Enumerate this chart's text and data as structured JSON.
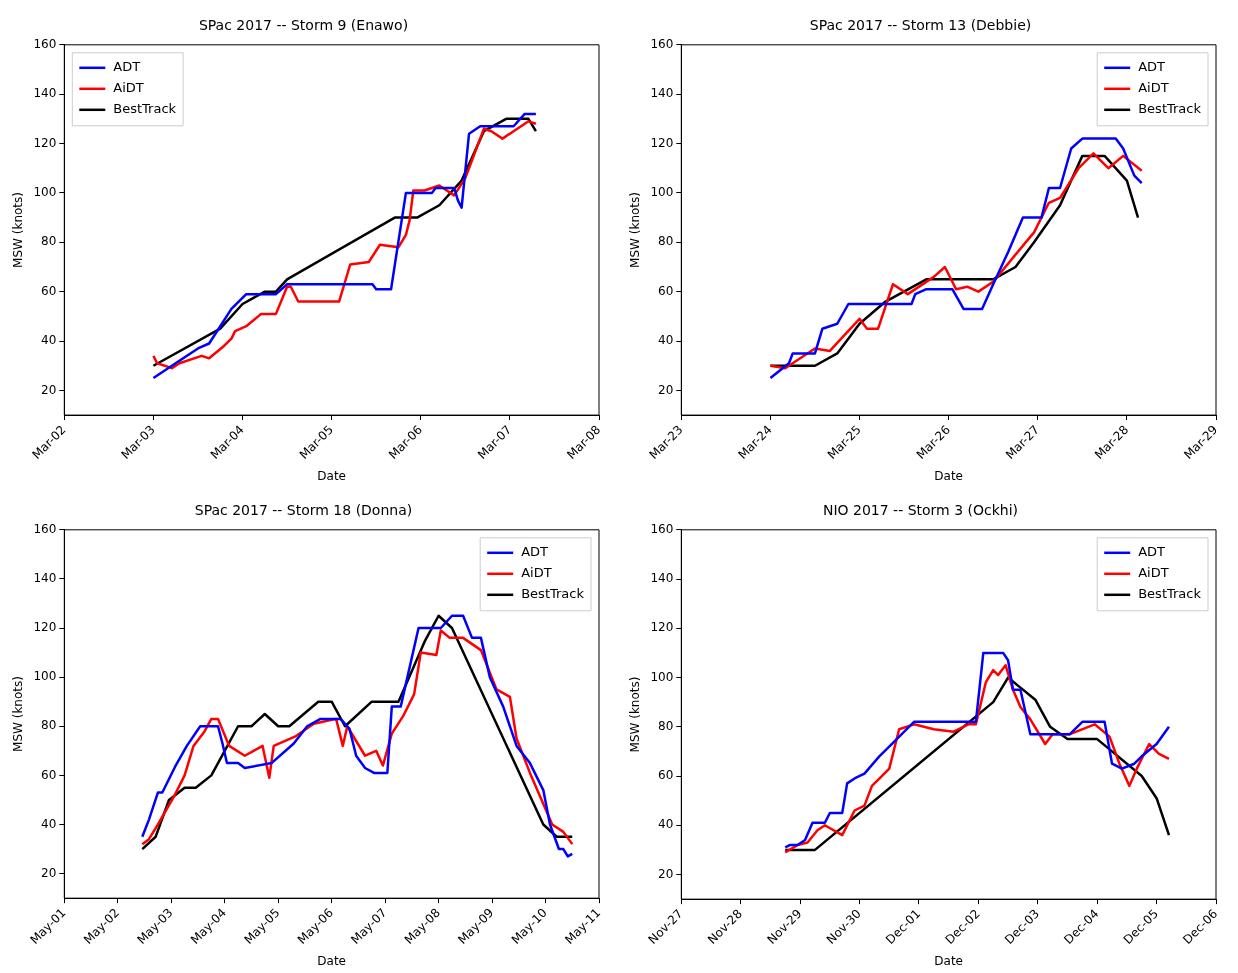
{
  "chart_data": [
    {
      "type": "line",
      "title": "SPac 2017 -- Storm 9 (Enawo)",
      "xlabel": "Date",
      "ylabel": "MSW (knots)",
      "legend": "top left",
      "grid": false,
      "xlim": [
        "2017-03-02",
        "2017-03-08"
      ],
      "xticks": [
        {
          "value": "2017-03-02",
          "label": "Mar-02"
        },
        {
          "value": "2017-03-03",
          "label": "Mar-03"
        },
        {
          "value": "2017-03-04",
          "label": "Mar-04"
        },
        {
          "value": "2017-03-05",
          "label": "Mar-05"
        },
        {
          "value": "2017-03-06",
          "label": "Mar-06"
        },
        {
          "value": "2017-03-07",
          "label": "Mar-07"
        },
        {
          "value": "2017-03-08",
          "label": "Mar-08"
        }
      ],
      "ylim": [
        10,
        160
      ],
      "yticks": [
        20,
        40,
        60,
        80,
        100,
        120,
        140,
        160
      ],
      "series": [
        {
          "name": "ADT",
          "color": "#0000ff",
          "x": [
            "2017-03-03T00:00",
            "2017-03-03T07:00",
            "2017-03-03T12:00",
            "2017-03-03T15:00",
            "2017-03-03T18:00",
            "2017-03-03T21:00",
            "2017-03-04T01:00",
            "2017-03-04T09:00",
            "2017-03-04T12:00",
            "2017-03-05T11:00",
            "2017-03-05T12:00",
            "2017-03-05T16:00",
            "2017-03-05T20:00",
            "2017-03-06T03:00",
            "2017-03-06T04:00",
            "2017-03-06T09:00",
            "2017-03-06T10:00",
            "2017-03-06T11:00",
            "2017-03-06T13:00",
            "2017-03-06T16:00",
            "2017-03-07T01:00",
            "2017-03-07T04:00",
            "2017-03-07T07:00"
          ],
          "values": [
            25,
            32,
            37,
            39,
            46,
            53,
            59,
            59,
            63,
            63,
            61,
            61,
            100,
            100,
            102,
            102,
            97,
            94,
            124,
            127,
            127,
            132,
            132
          ]
        },
        {
          "name": "AiDT",
          "color": "#ff0000",
          "x": [
            "2017-03-03T00:00",
            "2017-03-03T01:00",
            "2017-03-03T05:00",
            "2017-03-03T07:00",
            "2017-03-03T13:00",
            "2017-03-03T15:00",
            "2017-03-03T19:00",
            "2017-03-03T21:00",
            "2017-03-03T22:00",
            "2017-03-04T01:00",
            "2017-03-04T05:00",
            "2017-03-04T09:00",
            "2017-03-04T12:00",
            "2017-03-04T13:00",
            "2017-03-04T15:00",
            "2017-03-04T21:00",
            "2017-03-05T02:00",
            "2017-03-05T05:00",
            "2017-03-05T10:00",
            "2017-03-05T13:00",
            "2017-03-05T18:00",
            "2017-03-05T20:00",
            "2017-03-05T21:00",
            "2017-03-05T22:00",
            "2017-03-06T01:00",
            "2017-03-06T05:00",
            "2017-03-06T09:00",
            "2017-03-06T12:00",
            "2017-03-06T17:00",
            "2017-03-06T19:00",
            "2017-03-06T22:00",
            "2017-03-07T01:00",
            "2017-03-07T05:00",
            "2017-03-07T07:00"
          ],
          "values": [
            34,
            31,
            29,
            31,
            34,
            33,
            38,
            41,
            44,
            46,
            51,
            51,
            62,
            62,
            56,
            56,
            56,
            71,
            72,
            79,
            78,
            83,
            89,
            101,
            101,
            103,
            99,
            106,
            126,
            125,
            122,
            125,
            129,
            128
          ]
        },
        {
          "name": "BestTrack",
          "color": "#000000",
          "x": [
            "2017-03-03T00:00",
            "2017-03-03T18:00",
            "2017-03-04T00:00",
            "2017-03-04T06:00",
            "2017-03-04T09:00",
            "2017-03-04T12:00",
            "2017-03-05T17:00",
            "2017-03-05T23:00",
            "2017-03-06T05:00",
            "2017-03-06T11:00",
            "2017-03-06T17:00",
            "2017-03-06T23:00",
            "2017-03-07T05:00",
            "2017-03-07T07:00"
          ],
          "values": [
            30,
            45,
            55,
            60,
            60,
            65,
            90,
            90,
            95,
            105,
            125,
            130,
            130,
            125
          ]
        }
      ]
    },
    {
      "type": "line",
      "title": "SPac 2017 -- Storm 13 (Debbie)",
      "xlabel": "Date",
      "ylabel": "MSW (knots)",
      "legend": "top right",
      "grid": false,
      "xlim": [
        "2017-03-23",
        "2017-03-29"
      ],
      "xticks": [
        {
          "value": "2017-03-23",
          "label": "Mar-23"
        },
        {
          "value": "2017-03-24",
          "label": "Mar-24"
        },
        {
          "value": "2017-03-25",
          "label": "Mar-25"
        },
        {
          "value": "2017-03-26",
          "label": "Mar-26"
        },
        {
          "value": "2017-03-27",
          "label": "Mar-27"
        },
        {
          "value": "2017-03-28",
          "label": "Mar-28"
        },
        {
          "value": "2017-03-29",
          "label": "Mar-29"
        }
      ],
      "ylim": [
        10,
        160
      ],
      "yticks": [
        20,
        40,
        60,
        80,
        100,
        120,
        140,
        160
      ],
      "series": [
        {
          "name": "ADT",
          "color": "#0000ff",
          "x": [
            "2017-03-24T00:00",
            "2017-03-24T05:00",
            "2017-03-24T06:00",
            "2017-03-24T12:00",
            "2017-03-24T14:00",
            "2017-03-24T18:00",
            "2017-03-24T21:00",
            "2017-03-25T14:00",
            "2017-03-25T15:00",
            "2017-03-25T18:00",
            "2017-03-26T01:00",
            "2017-03-26T04:00",
            "2017-03-26T09:00",
            "2017-03-26T12:00",
            "2017-03-26T16:00",
            "2017-03-26T20:00",
            "2017-03-27T01:00",
            "2017-03-27T03:00",
            "2017-03-27T06:00",
            "2017-03-27T09:00",
            "2017-03-27T12:00",
            "2017-03-27T21:00",
            "2017-03-27T23:00",
            "2017-03-28T02:00",
            "2017-03-28T04:00"
          ],
          "values": [
            25,
            31,
            35,
            35,
            45,
            47,
            55,
            55,
            59,
            61,
            61,
            53,
            53,
            63,
            76,
            90,
            90,
            102,
            102,
            118,
            122,
            122,
            118,
            107,
            104
          ]
        },
        {
          "name": "AiDT",
          "color": "#ff0000",
          "x": [
            "2017-03-24T00:00",
            "2017-03-24T04:00",
            "2017-03-24T07:00",
            "2017-03-24T12:00",
            "2017-03-24T16:00",
            "2017-03-25T00:00",
            "2017-03-25T02:00",
            "2017-03-25T05:00",
            "2017-03-25T09:00",
            "2017-03-25T13:00",
            "2017-03-25T20:00",
            "2017-03-25T23:00",
            "2017-03-26T02:00",
            "2017-03-26T05:00",
            "2017-03-26T08:00",
            "2017-03-26T12:00",
            "2017-03-26T18:00",
            "2017-03-26T23:00",
            "2017-03-27T03:00",
            "2017-03-27T06:00",
            "2017-03-27T11:00",
            "2017-03-27T15:00",
            "2017-03-27T19:00",
            "2017-03-27T23:00",
            "2017-03-28T04:00"
          ],
          "values": [
            30,
            29,
            32,
            37,
            36,
            49,
            45,
            45,
            63,
            59,
            66,
            70,
            61,
            62,
            60,
            64,
            75,
            84,
            96,
            98,
            110,
            116,
            110,
            115,
            109
          ]
        },
        {
          "name": "BestTrack",
          "color": "#000000",
          "x": [
            "2017-03-24T00:00",
            "2017-03-24T12:00",
            "2017-03-24T18:00",
            "2017-03-25T00:00",
            "2017-03-25T07:00",
            "2017-03-25T18:00",
            "2017-03-26T12:00",
            "2017-03-26T18:00",
            "2017-03-26T23:00",
            "2017-03-27T06:00",
            "2017-03-27T12:00",
            "2017-03-27T18:00",
            "2017-03-28T00:00",
            "2017-03-28T03:00"
          ],
          "values": [
            30,
            30,
            35,
            47,
            56,
            65,
            65,
            70,
            80,
            95,
            115,
            115,
            105,
            90
          ]
        }
      ]
    },
    {
      "type": "line",
      "title": "SPac 2017 -- Storm 18 (Donna)",
      "xlabel": "Date",
      "ylabel": "MSW (knots)",
      "legend": "top right",
      "grid": false,
      "xlim": [
        "2017-05-01",
        "2017-05-11"
      ],
      "xticks": [
        {
          "value": "2017-05-01",
          "label": "May-01"
        },
        {
          "value": "2017-05-02",
          "label": "May-02"
        },
        {
          "value": "2017-05-03",
          "label": "May-03"
        },
        {
          "value": "2017-05-04",
          "label": "May-04"
        },
        {
          "value": "2017-05-05",
          "label": "May-05"
        },
        {
          "value": "2017-05-06",
          "label": "May-06"
        },
        {
          "value": "2017-05-07",
          "label": "May-07"
        },
        {
          "value": "2017-05-08",
          "label": "May-08"
        },
        {
          "value": "2017-05-09",
          "label": "May-09"
        },
        {
          "value": "2017-05-10",
          "label": "May-10"
        },
        {
          "value": "2017-05-11",
          "label": "May-11"
        }
      ],
      "ylim": [
        10,
        160
      ],
      "yticks": [
        20,
        40,
        60,
        80,
        100,
        120,
        140,
        160
      ],
      "series": [
        {
          "name": "ADT",
          "color": "#0000ff",
          "x": [
            "2017-05-02T11:00",
            "2017-05-02T14:00",
            "2017-05-02T18:00",
            "2017-05-02T20:00",
            "2017-05-03T02:00",
            "2017-05-03T07:00",
            "2017-05-03T13:00",
            "2017-05-03T21:00",
            "2017-05-03T23:00",
            "2017-05-04T01:00",
            "2017-05-04T06:00",
            "2017-05-04T09:00",
            "2017-05-04T21:00",
            "2017-05-05T07:00",
            "2017-05-05T13:00",
            "2017-05-05T19:00",
            "2017-05-06T04:00",
            "2017-05-06T08:00",
            "2017-05-06T11:00",
            "2017-05-06T15:00",
            "2017-05-06T19:00",
            "2017-05-07T01:00",
            "2017-05-07T03:00",
            "2017-05-07T07:00",
            "2017-05-07T10:00",
            "2017-05-07T15:00",
            "2017-05-08T01:00",
            "2017-05-08T06:00",
            "2017-05-08T11:00",
            "2017-05-08T15:00",
            "2017-05-08T19:00",
            "2017-05-08T23:00",
            "2017-05-09T05:00",
            "2017-05-09T11:00",
            "2017-05-09T17:00",
            "2017-05-09T23:00",
            "2017-05-10T02:00",
            "2017-05-10T06:00",
            "2017-05-10T08:00",
            "2017-05-10T10:00",
            "2017-05-10T12:00"
          ],
          "values": [
            35,
            42,
            53,
            53,
            64,
            72,
            80,
            80,
            73,
            65,
            65,
            63,
            65,
            73,
            80,
            83,
            83,
            79,
            68,
            63,
            61,
            61,
            88,
            88,
            100,
            120,
            120,
            125,
            125,
            116,
            116,
            100,
            88,
            72,
            65,
            54,
            40,
            30,
            30,
            27,
            28
          ]
        },
        {
          "name": "AiDT",
          "color": "#ff0000",
          "x": [
            "2017-05-02T11:00",
            "2017-05-02T14:00",
            "2017-05-02T18:00",
            "2017-05-03T01:00",
            "2017-05-03T06:00",
            "2017-05-03T10:00",
            "2017-05-03T15:00",
            "2017-05-03T18:00",
            "2017-05-03T21:00",
            "2017-05-04T02:00",
            "2017-05-04T09:00",
            "2017-05-04T15:00",
            "2017-05-04T17:00",
            "2017-05-04T20:00",
            "2017-05-04T22:00",
            "2017-05-05T08:00",
            "2017-05-05T16:00",
            "2017-05-06T02:00",
            "2017-05-06T05:00",
            "2017-05-06T07:00",
            "2017-05-06T15:00",
            "2017-05-06T20:00",
            "2017-05-06T23:00",
            "2017-05-07T03:00",
            "2017-05-07T08:00",
            "2017-05-07T13:00",
            "2017-05-07T16:00",
            "2017-05-07T23:00",
            "2017-05-08T01:00",
            "2017-05-08T05:00",
            "2017-05-08T11:00",
            "2017-05-08T19:00",
            "2017-05-09T02:00",
            "2017-05-09T08:00",
            "2017-05-09T11:00",
            "2017-05-09T17:00",
            "2017-05-10T03:00",
            "2017-05-10T08:00",
            "2017-05-10T12:00"
          ],
          "values": [
            32,
            34,
            40,
            51,
            60,
            72,
            78,
            83,
            83,
            72,
            68,
            71,
            72,
            59,
            72,
            76,
            81,
            83,
            72,
            80,
            68,
            70,
            64,
            77,
            84,
            93,
            110,
            109,
            119,
            116,
            116,
            111,
            95,
            92,
            75,
            61,
            40,
            37,
            32
          ]
        },
        {
          "name": "BestTrack",
          "color": "#000000",
          "x": [
            "2017-05-02T11:00",
            "2017-05-02T17:00",
            "2017-05-02T23:00",
            "2017-05-03T06:00",
            "2017-05-03T11:00",
            "2017-05-03T18:00",
            "2017-05-04T06:00",
            "2017-05-04T12:00",
            "2017-05-04T18:00",
            "2017-05-05T00:00",
            "2017-05-05T05:00",
            "2017-05-05T18:00",
            "2017-05-06T00:00",
            "2017-05-06T06:00",
            "2017-05-06T18:00",
            "2017-05-07T06:00",
            "2017-05-07T18:00",
            "2017-05-08T00:00",
            "2017-05-08T06:00",
            "2017-05-09T23:00",
            "2017-05-10T05:00",
            "2017-05-10T12:00"
          ],
          "values": [
            30,
            35,
            50,
            55,
            55,
            60,
            80,
            80,
            85,
            80,
            80,
            90,
            90,
            80,
            90,
            90,
            115,
            125,
            120,
            40,
            35,
            35
          ]
        }
      ]
    },
    {
      "type": "line",
      "title": "NIO 2017 -- Storm 3 (Ockhi)",
      "xlabel": "Date",
      "ylabel": "MSW (knots)",
      "legend": "top right",
      "grid": false,
      "xlim": [
        "2017-11-27",
        "2017-12-06"
      ],
      "xticks": [
        {
          "value": "2017-11-27",
          "label": "Nov-27"
        },
        {
          "value": "2017-11-28",
          "label": "Nov-28"
        },
        {
          "value": "2017-11-29",
          "label": "Nov-29"
        },
        {
          "value": "2017-11-30",
          "label": "Nov-30"
        },
        {
          "value": "2017-12-01",
          "label": "Dec-01"
        },
        {
          "value": "2017-12-02",
          "label": "Dec-02"
        },
        {
          "value": "2017-12-03",
          "label": "Dec-03"
        },
        {
          "value": "2017-12-04",
          "label": "Dec-04"
        },
        {
          "value": "2017-12-05",
          "label": "Dec-05"
        },
        {
          "value": "2017-12-06",
          "label": "Dec-06"
        }
      ],
      "ylim": [
        10,
        160
      ],
      "yticks": [
        20,
        40,
        60,
        80,
        100,
        120,
        140,
        160
      ],
      "series": [
        {
          "name": "ADT",
          "color": "#0000ff",
          "x": [
            "2017-11-28T18:00",
            "2017-11-28T20:00",
            "2017-11-28T23:00",
            "2017-11-29T02:00",
            "2017-11-29T05:00",
            "2017-11-29T10:00",
            "2017-11-29T12:00",
            "2017-11-29T17:00",
            "2017-11-29T19:00",
            "2017-11-29T22:00",
            "2017-11-30T02:00",
            "2017-11-30T08:00",
            "2017-11-30T13:00",
            "2017-11-30T22:00",
            "2017-12-01T23:00",
            "2017-12-02T02:00",
            "2017-12-02T10:00",
            "2017-12-02T12:00",
            "2017-12-02T14:00",
            "2017-12-02T17:00",
            "2017-12-02T21:00",
            "2017-12-03T13:00",
            "2017-12-03T18:00",
            "2017-12-04T03:00",
            "2017-12-04T06:00",
            "2017-12-04T10:00",
            "2017-12-04T15:00",
            "2017-12-04T18:00",
            "2017-12-05T00:00",
            "2017-12-05T05:00"
          ],
          "values": [
            31,
            32,
            32,
            34,
            41,
            41,
            45,
            45,
            57,
            59,
            61,
            68,
            73,
            82,
            82,
            110,
            110,
            107,
            95,
            95,
            77,
            77,
            82,
            82,
            65,
            63,
            65,
            68,
            73,
            80
          ]
        },
        {
          "name": "AiDT",
          "color": "#ff0000",
          "x": [
            "2017-11-28T18:00",
            "2017-11-28T23:00",
            "2017-11-29T03:00",
            "2017-11-29T07:00",
            "2017-11-29T10:00",
            "2017-11-29T17:00",
            "2017-11-29T22:00",
            "2017-11-30T02:00",
            "2017-11-30T05:00",
            "2017-11-30T09:00",
            "2017-11-30T12:00",
            "2017-11-30T16:00",
            "2017-11-30T22:00",
            "2017-12-01T06:00",
            "2017-12-01T14:00",
            "2017-12-01T20:00",
            "2017-12-01T23:00",
            "2017-12-02T03:00",
            "2017-12-02T06:00",
            "2017-12-02T08:00",
            "2017-12-02T11:00",
            "2017-12-02T14:00",
            "2017-12-02T17:00",
            "2017-12-02T21:00",
            "2017-12-03T03:00",
            "2017-12-03T06:00",
            "2017-12-03T13:00",
            "2017-12-03T23:00",
            "2017-12-04T05:00",
            "2017-12-04T09:00",
            "2017-12-04T13:00",
            "2017-12-04T16:00",
            "2017-12-04T21:00",
            "2017-12-05T01:00",
            "2017-12-05T05:00"
          ],
          "values": [
            29,
            32,
            33,
            38,
            40,
            36,
            46,
            48,
            56,
            60,
            63,
            79,
            81,
            79,
            78,
            81,
            81,
            98,
            103,
            101,
            105,
            95,
            88,
            83,
            73,
            77,
            77,
            81,
            76,
            65,
            56,
            63,
            73,
            69,
            67
          ]
        },
        {
          "name": "BestTrack",
          "color": "#000000",
          "x": [
            "2017-11-28T18:00",
            "2017-11-29T06:00",
            "2017-12-02T06:00",
            "2017-12-02T12:00",
            "2017-12-02T23:00",
            "2017-12-03T05:00",
            "2017-12-03T12:00",
            "2017-12-04T00:00",
            "2017-12-04T06:00",
            "2017-12-04T18:00",
            "2017-12-05T00:00",
            "2017-12-05T05:00"
          ],
          "values": [
            30,
            30,
            90,
            100,
            91,
            80,
            75,
            75,
            70,
            60,
            51,
            36
          ]
        }
      ]
    }
  ]
}
